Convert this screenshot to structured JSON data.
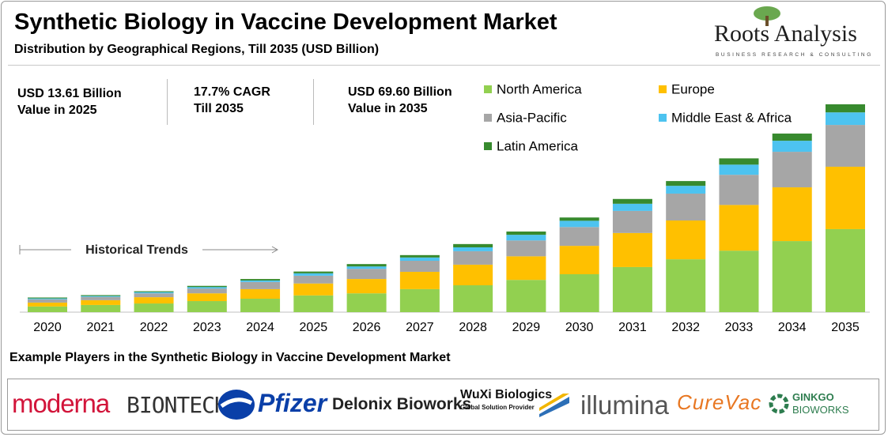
{
  "header": {
    "logo": "Roots Analysis",
    "logo_tagline": "BUSINESS RESEARCH & CONSULTING"
  },
  "highlights": [
    {
      "line1": "USD 13.61 Billion",
      "line2": "Value in 2025"
    },
    {
      "line1": "17.7% CAGR",
      "line2": "Till 2035"
    },
    {
      "line1": "USD 69.60 Billion",
      "line2": "Value in 2035"
    }
  ],
  "chart_data": {
    "type": "stacked_bar",
    "title": "Synthetic Biology in Vaccine Development Market",
    "subtitle": "Distribution by Geographical Regions, Till 2035 (USD Billion)",
    "annotation": "Historical Trends",
    "categories": [
      "2020",
      "2021",
      "2022",
      "2023",
      "2024",
      "2025",
      "2026",
      "2027",
      "2028",
      "2029",
      "2030",
      "2031",
      "2032",
      "2033",
      "2034",
      "2035"
    ],
    "series": [
      {
        "name": "North America",
        "color": "#92d050",
        "values": [
          1.9,
          2.4,
          2.9,
          3.7,
          4.5,
          5.6,
          6.3,
          7.7,
          9.0,
          10.8,
          12.7,
          15.1,
          17.7,
          20.6,
          23.8,
          27.8
        ]
      },
      {
        "name": "Europe",
        "color": "#ffc000",
        "values": [
          1.3,
          1.6,
          2.1,
          2.6,
          3.2,
          4.0,
          4.8,
          5.8,
          6.9,
          7.9,
          9.5,
          11.4,
          13.0,
          15.3,
          18.0,
          20.9
        ]
      },
      {
        "name": "Asia-Pacific",
        "color": "#a6a6a6",
        "values": [
          1.1,
          1.1,
          1.3,
          1.6,
          2.4,
          2.6,
          3.4,
          3.7,
          4.5,
          5.3,
          6.3,
          7.4,
          9.0,
          10.1,
          11.9,
          14.0
        ]
      },
      {
        "name": "Middle East & Africa",
        "color": "#4dc3f0",
        "values": [
          0.3,
          0.3,
          0.4,
          0.5,
          0.5,
          0.8,
          0.8,
          1.1,
          1.3,
          1.9,
          2.1,
          2.4,
          2.6,
          3.4,
          3.7,
          4.2
        ]
      },
      {
        "name": "Latin America",
        "color": "#378a2e",
        "values": [
          0.3,
          0.3,
          0.3,
          0.4,
          0.5,
          0.6,
          0.8,
          0.8,
          1.1,
          1.1,
          1.1,
          1.6,
          1.6,
          2.1,
          2.4,
          2.7
        ]
      }
    ]
  },
  "players": {
    "title": "Example Players in the Synthetic Biology in Vaccine Development Market",
    "names": [
      "moderna",
      "BIONTECH",
      "Pfizer",
      "Delonix Bioworks",
      "WuXi Biologics",
      "Global Solution Provider",
      "illumina",
      "CureVac",
      "GINKGO",
      "BIOWORKS"
    ]
  }
}
